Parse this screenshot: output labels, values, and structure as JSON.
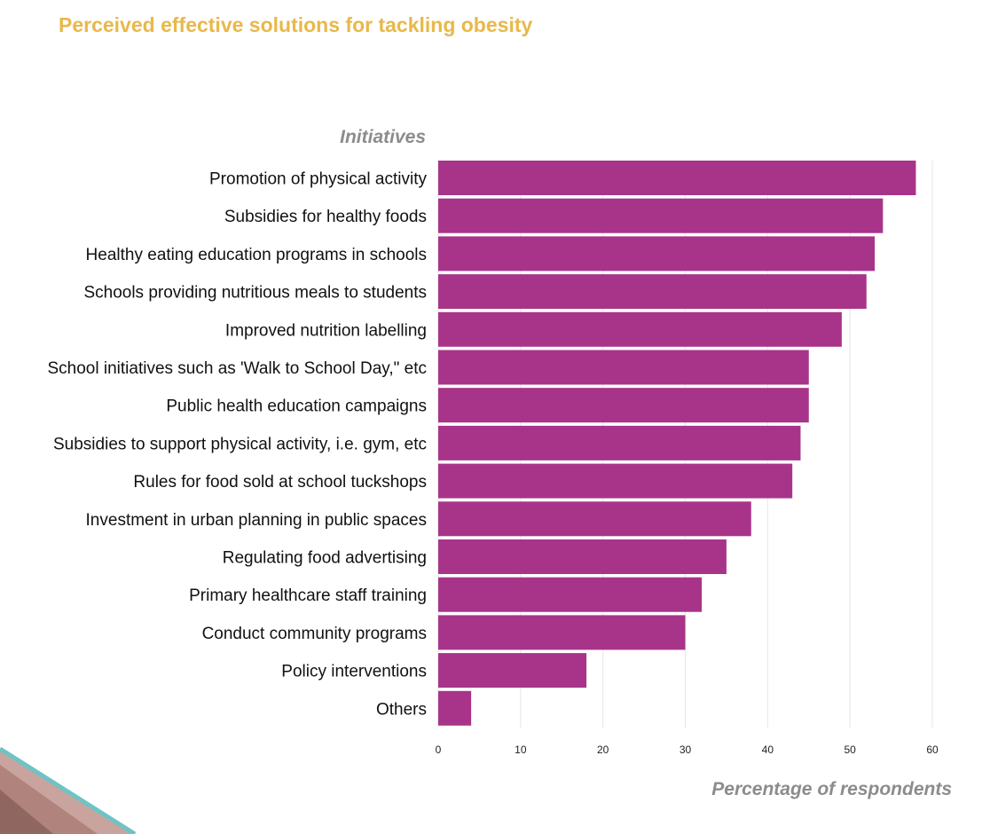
{
  "title": "Perceived effective solutions for tackling obesity",
  "chart_data": {
    "type": "bar",
    "orientation": "horizontal",
    "title": "Perceived effective solutions for tackling obesity",
    "ylabel": "Initiatives",
    "xlabel": "Percentage of respondents",
    "categories": [
      "Promotion of physical activity",
      "Subsidies for healthy foods",
      "Healthy eating education programs in schools",
      "Schools providing nutritious meals to students",
      "Improved nutrition labelling",
      "School initiatives such as 'Walk to School Day,\" etc",
      "Public health education campaigns",
      "Subsidies to support physical activity, i.e. gym, etc",
      "Rules for food sold at school tuckshops",
      "Investment in urban planning in public spaces",
      "Regulating food advertising",
      "Primary healthcare staff training",
      "Conduct community programs",
      "Policy interventions",
      "Others"
    ],
    "values": [
      58,
      54,
      53,
      52,
      49,
      45,
      45,
      44,
      43,
      38,
      35,
      32,
      30,
      18,
      4
    ],
    "xlim": [
      0,
      60
    ],
    "xticks": [
      "0",
      "10",
      "20",
      "30",
      "40",
      "50",
      "60"
    ],
    "bar_color": "#a8348a",
    "grid": true
  },
  "colors": {
    "title": "#e8b84a",
    "axis_title": "#8c8c8c",
    "bar": "#a8348a",
    "grid": "#e6e6e6"
  }
}
